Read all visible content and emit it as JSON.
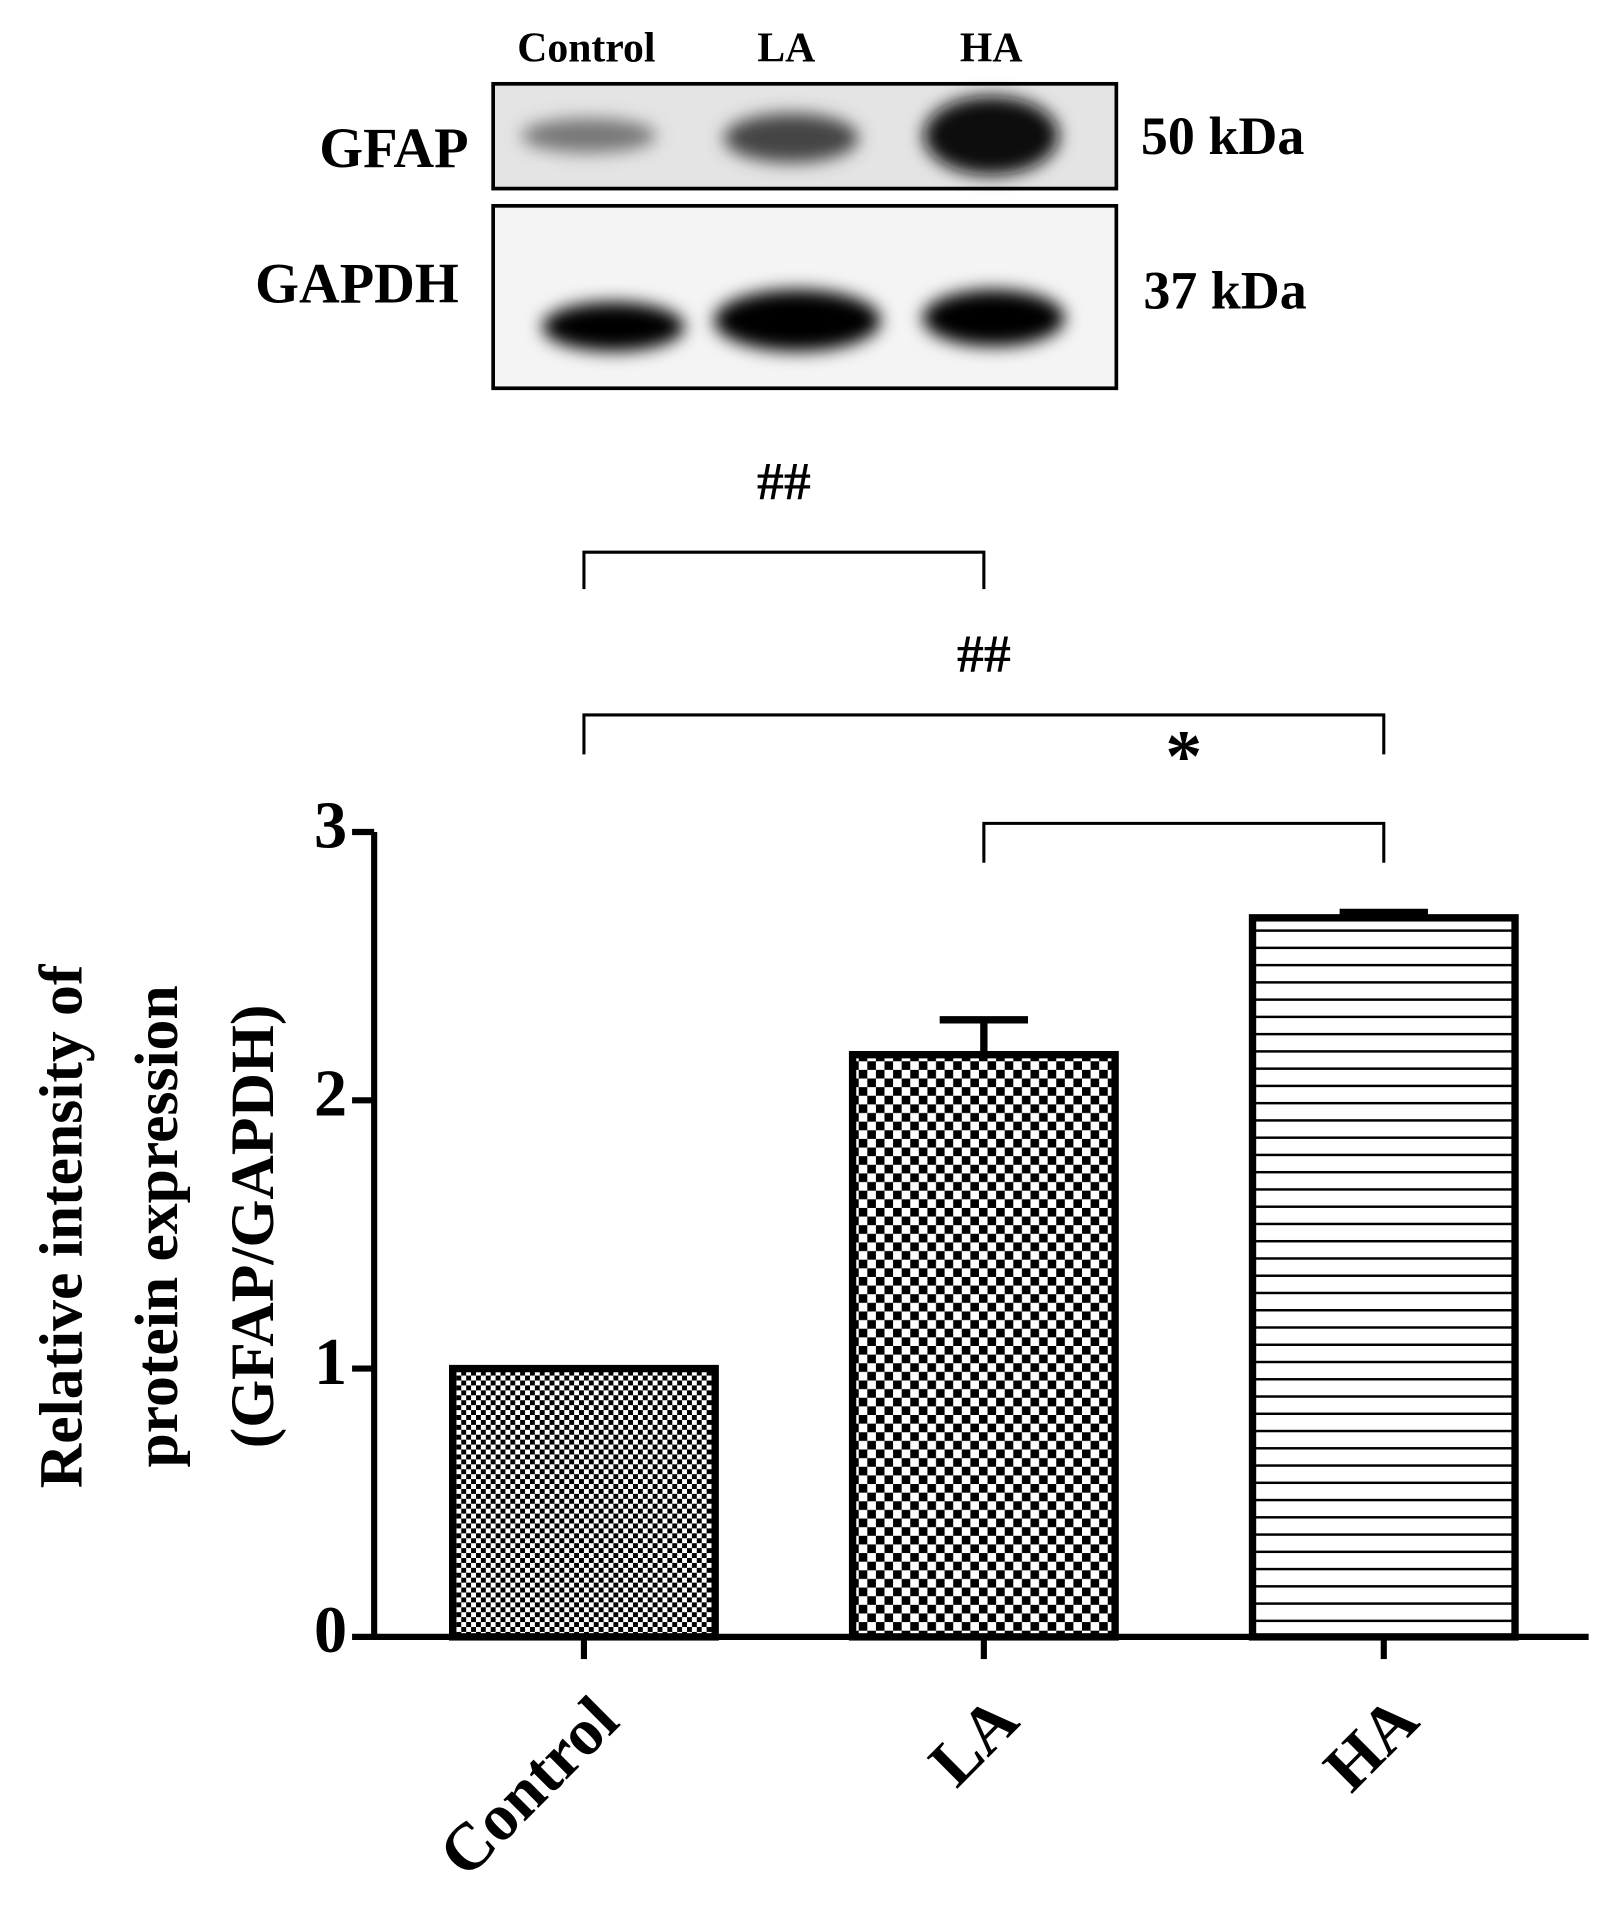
{
  "blot": {
    "lanes": [
      "Control",
      "LA",
      "HA"
    ],
    "rows": [
      {
        "name": "GFAP",
        "size": "50 kDa"
      },
      {
        "name": "GAPDH",
        "size": "37 kDa"
      }
    ]
  },
  "chart_data": {
    "type": "bar",
    "categories": [
      "Control",
      "LA",
      "HA"
    ],
    "values": [
      1.0,
      2.17,
      2.68
    ],
    "errors": [
      0,
      0.13,
      0.02
    ],
    "ylim": [
      0,
      3
    ],
    "yticks": [
      0,
      1,
      2,
      3
    ],
    "ylabel": [
      "Relative intensity of",
      "protein expression",
      "(GFAP/GAPDH)"
    ],
    "annotations": [
      {
        "label": "##",
        "between": [
          "Control",
          "LA"
        ]
      },
      {
        "label": "##",
        "between": [
          "Control",
          "HA"
        ]
      },
      {
        "label": "*",
        "between": [
          "LA",
          "HA"
        ]
      }
    ]
  }
}
